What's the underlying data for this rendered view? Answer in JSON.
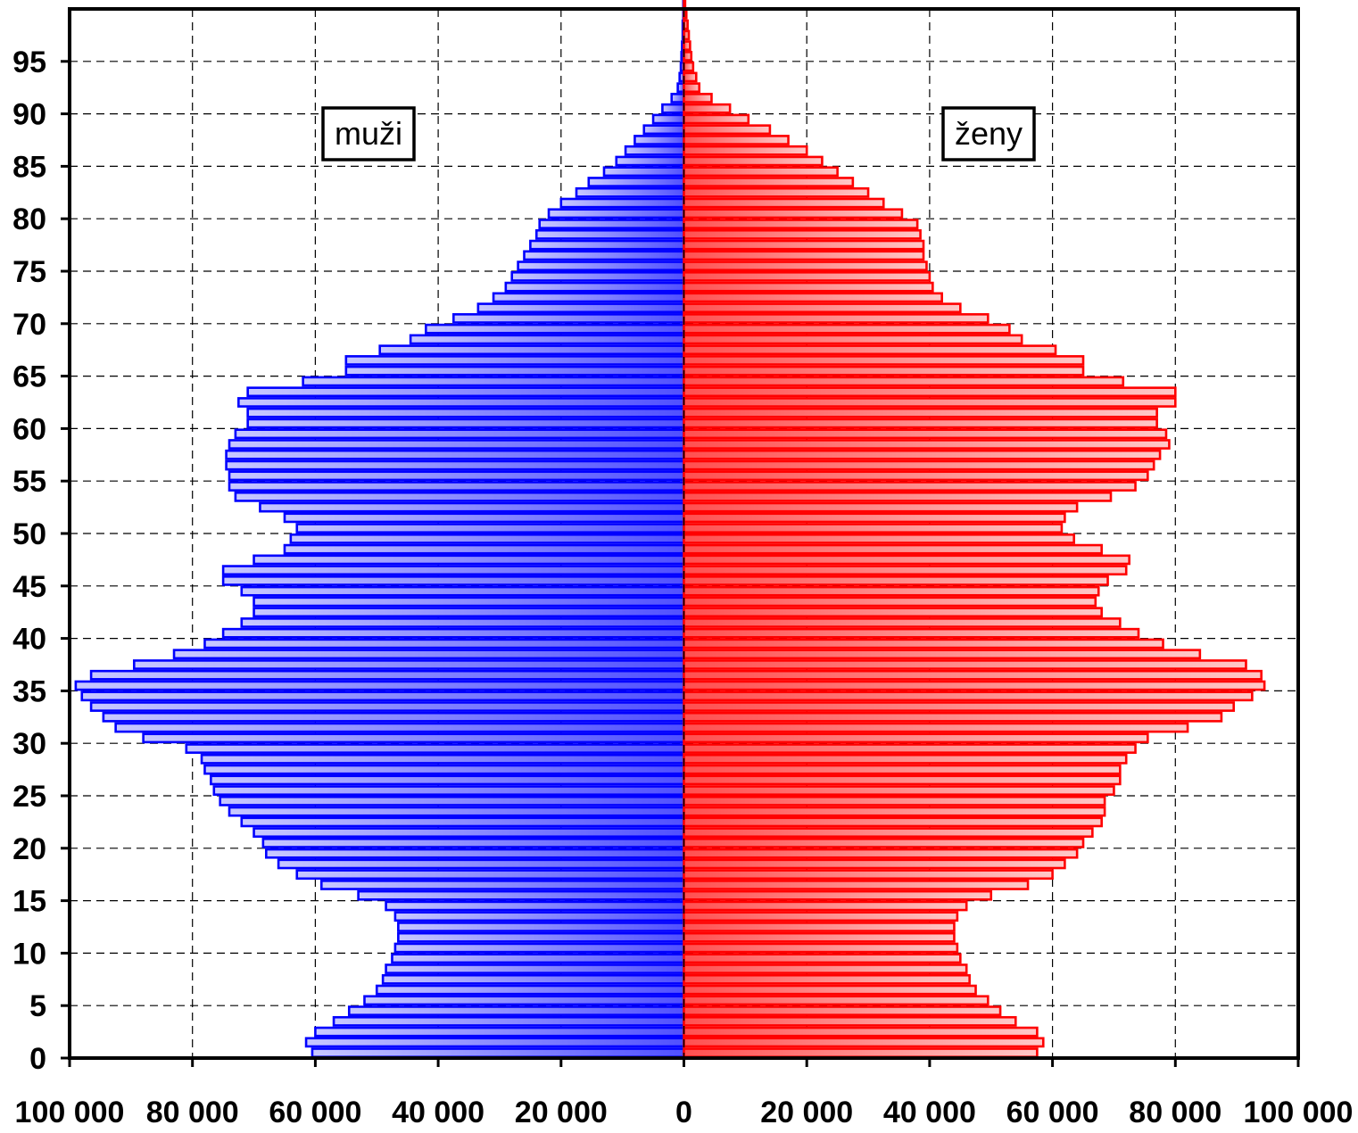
{
  "chart_data": {
    "type": "bar",
    "orientation": "population-pyramid",
    "categories_label": "age",
    "ages": [
      0,
      1,
      2,
      3,
      4,
      5,
      6,
      7,
      8,
      9,
      10,
      11,
      12,
      13,
      14,
      15,
      16,
      17,
      18,
      19,
      20,
      21,
      22,
      23,
      24,
      25,
      26,
      27,
      28,
      29,
      30,
      31,
      32,
      33,
      34,
      35,
      36,
      37,
      38,
      39,
      40,
      41,
      42,
      43,
      44,
      45,
      46,
      47,
      48,
      49,
      50,
      51,
      52,
      53,
      54,
      55,
      56,
      57,
      58,
      59,
      60,
      61,
      62,
      63,
      64,
      65,
      66,
      67,
      68,
      69,
      70,
      71,
      72,
      73,
      74,
      75,
      76,
      77,
      78,
      79,
      80,
      81,
      82,
      83,
      84,
      85,
      86,
      87,
      88,
      89,
      90,
      91,
      92,
      93,
      94,
      95,
      96,
      97,
      98,
      99,
      100
    ],
    "series": [
      {
        "name": "muži",
        "color": "#0000ff",
        "side": "left",
        "values": [
          60500,
          61500,
          60000,
          57000,
          54500,
          52000,
          50000,
          49000,
          48500,
          47500,
          47000,
          46500,
          46500,
          47000,
          48500,
          53000,
          59000,
          63000,
          66000,
          68000,
          68500,
          70000,
          72000,
          74000,
          75500,
          76500,
          77000,
          78000,
          78500,
          81000,
          88000,
          92500,
          94500,
          96500,
          98000,
          99000,
          96500,
          89500,
          83000,
          78000,
          75000,
          72000,
          70000,
          70000,
          72000,
          75000,
          75000,
          70000,
          65000,
          64000,
          63000,
          65000,
          69000,
          73000,
          74000,
          74000,
          74500,
          74500,
          74000,
          73000,
          71000,
          71000,
          72500,
          71000,
          62000,
          55000,
          55000,
          49500,
          44500,
          42000,
          37500,
          33500,
          31000,
          29000,
          28000,
          27000,
          26000,
          25000,
          24000,
          23500,
          22000,
          20000,
          17500,
          15500,
          13000,
          11000,
          9500,
          8000,
          6500,
          5000,
          3500,
          2000,
          1000,
          700,
          500,
          400,
          300,
          200,
          200,
          100,
          100
        ]
      },
      {
        "name": "ženy",
        "color": "#ff0000",
        "side": "right",
        "values": [
          57500,
          58500,
          57500,
          54000,
          51500,
          49500,
          47500,
          46500,
          46000,
          45000,
          44500,
          44000,
          44000,
          44500,
          46000,
          50000,
          56000,
          60000,
          62000,
          64000,
          65000,
          66500,
          68000,
          68500,
          68500,
          70000,
          71000,
          71000,
          72000,
          73500,
          75500,
          82000,
          87500,
          89500,
          92500,
          94500,
          94000,
          91500,
          84000,
          78000,
          74000,
          71000,
          68000,
          67000,
          67500,
          69000,
          72000,
          72500,
          68000,
          63500,
          61500,
          62000,
          64000,
          69500,
          73500,
          75500,
          76500,
          77500,
          79000,
          78500,
          77000,
          77000,
          80000,
          80000,
          71500,
          65000,
          65000,
          60500,
          55000,
          53000,
          49500,
          45000,
          42000,
          40500,
          40000,
          39500,
          39000,
          39000,
          38500,
          38000,
          35500,
          32500,
          30000,
          27500,
          25000,
          22500,
          20000,
          17000,
          14000,
          10500,
          7500,
          4500,
          2500,
          2000,
          1500,
          1200,
          1000,
          800,
          600,
          400,
          200
        ]
      }
    ],
    "legend": [
      {
        "label": "muži",
        "placement": "top-left"
      },
      {
        "label": "ženy",
        "placement": "top-right"
      }
    ],
    "x_ticks": [
      "100 000",
      "80 000",
      "60 000",
      "40 000",
      "20 000",
      "0",
      "20 000",
      "40 000",
      "60 000",
      "80 000",
      "100 000"
    ],
    "y_ticks": [
      "0",
      "5",
      "10",
      "15",
      "20",
      "25",
      "30",
      "35",
      "40",
      "45",
      "50",
      "55",
      "60",
      "65",
      "70",
      "75",
      "80",
      "85",
      "90",
      "95"
    ],
    "xlim": [
      -100000,
      100000
    ],
    "ylim": [
      0,
      100
    ],
    "grid": "dashed"
  }
}
